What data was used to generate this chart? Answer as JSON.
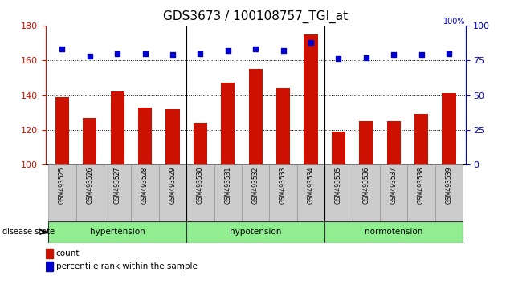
{
  "title": "GDS3673 / 100108757_TGI_at",
  "samples": [
    "GSM493525",
    "GSM493526",
    "GSM493527",
    "GSM493528",
    "GSM493529",
    "GSM493530",
    "GSM493531",
    "GSM493532",
    "GSM493533",
    "GSM493534",
    "GSM493535",
    "GSM493536",
    "GSM493537",
    "GSM493538",
    "GSM493539"
  ],
  "count_values": [
    139,
    127,
    142,
    133,
    132,
    124,
    147,
    155,
    144,
    175,
    119,
    125,
    125,
    129,
    141
  ],
  "percentile_values": [
    83,
    78,
    80,
    80,
    79,
    80,
    82,
    83,
    82,
    88,
    76,
    77,
    79,
    79,
    80
  ],
  "groups": [
    {
      "label": "hypertension",
      "start": 0,
      "end": 4
    },
    {
      "label": "hypotension",
      "start": 5,
      "end": 9
    },
    {
      "label": "normotension",
      "start": 10,
      "end": 14
    }
  ],
  "ylim_left": [
    100,
    180
  ],
  "ylim_right": [
    0,
    100
  ],
  "yticks_left": [
    100,
    120,
    140,
    160,
    180
  ],
  "yticks_right": [
    0,
    25,
    50,
    75,
    100
  ],
  "bar_color": "#cc1100",
  "dot_color": "#0000cc",
  "group_fill": "#90ee90",
  "tick_bg": "#cccccc",
  "separator_indices": [
    4.5,
    9.5
  ],
  "title_fontsize": 11
}
